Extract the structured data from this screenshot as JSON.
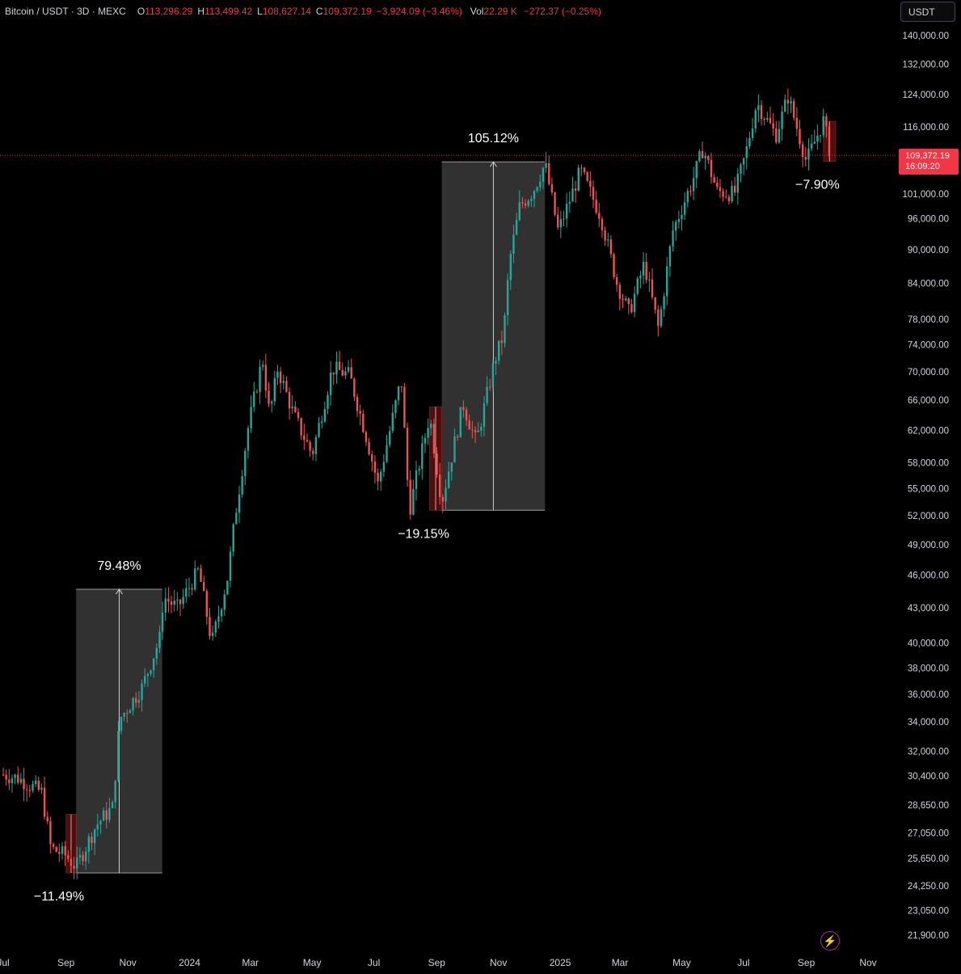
{
  "legend": {
    "symbol": "Bitcoin / USDT · 3D · MEXC",
    "open_label": "O",
    "open": "113,296.29",
    "high_label": "H",
    "high": "113,499.42",
    "low_label": "L",
    "low": "108,627.14",
    "close_label": "C",
    "close": "109,372.19",
    "change": "−3,924.09 (−3.46%)",
    "vol_label": "Vol",
    "vol": "22.29 K",
    "vol_change": "−272.37 (−0.25%)"
  },
  "currency_button": "USDT",
  "price_tag": {
    "price": "109,372.19",
    "countdown": "16:09:20"
  },
  "colors": {
    "background": "#000000",
    "up": "#26a69a",
    "down": "#ef5350",
    "axis_text": "#d1d4dc",
    "measure_fill": "#3a3a3a",
    "measure_red": "#8b1a1a"
  },
  "icons": {
    "bottom_right": "lightning-icon"
  },
  "chart_data": {
    "type": "candlestick",
    "title": "Bitcoin / USDT · 3D · MEXC",
    "y_scale": "log",
    "ylim": [
      21000,
      146000
    ],
    "y_ticks": [
      140000,
      132000,
      124000,
      116000,
      101000,
      96000,
      90000,
      84000,
      78000,
      74000,
      70000,
      66000,
      62000,
      58000,
      55000,
      52000,
      49000,
      46000,
      43000,
      40000,
      38000,
      36000,
      34000,
      32000,
      30400,
      28650,
      27050,
      25650,
      24250,
      23050,
      21900
    ],
    "y_tick_labels": [
      "140,000.00",
      "132,000.00",
      "124,000.00",
      "116,000.00",
      "101,000.00",
      "96,000.00",
      "90,000.00",
      "84,000.00",
      "78,000.00",
      "74,000.00",
      "70,000.00",
      "66,000.00",
      "62,000.00",
      "58,000.00",
      "55,000.00",
      "52,000.00",
      "49,000.00",
      "46,000.00",
      "43,000.00",
      "40,000.00",
      "38,000.00",
      "36,000.00",
      "34,000.00",
      "32,000.00",
      "30,400.00",
      "28,650.00",
      "27,050.00",
      "25,650.00",
      "24,250.00",
      "23,050.00",
      "21,900.00"
    ],
    "x_ticks": [
      "2023-07",
      "2023-09",
      "2023-11",
      "2024-01",
      "2024-03",
      "2024-05",
      "2024-07",
      "2024-09",
      "2024-11",
      "2025-01",
      "2025-03",
      "2025-05",
      "2025-07",
      "2025-09",
      "2025-11"
    ],
    "x_tick_labels": [
      "Jul",
      "Sep",
      "Nov",
      "2024",
      "Mar",
      "May",
      "Jul",
      "Sep",
      "Nov",
      "2025",
      "Mar",
      "May",
      "Jul",
      "Sep",
      "Nov"
    ],
    "last_price": 109372.19,
    "price_anchors": [
      {
        "date": "2023-07-01",
        "price": 30500
      },
      {
        "date": "2023-07-15",
        "price": 30300
      },
      {
        "date": "2023-08-08",
        "price": 29400
      },
      {
        "date": "2023-08-17",
        "price": 26200
      },
      {
        "date": "2023-09-01",
        "price": 25800
      },
      {
        "date": "2023-09-11",
        "price": 25200
      },
      {
        "date": "2023-10-01",
        "price": 27500
      },
      {
        "date": "2023-10-17",
        "price": 28500
      },
      {
        "date": "2023-10-24",
        "price": 34200
      },
      {
        "date": "2023-11-15",
        "price": 36500
      },
      {
        "date": "2023-12-03",
        "price": 40500
      },
      {
        "date": "2023-12-06",
        "price": 44000
      },
      {
        "date": "2023-12-20",
        "price": 43000
      },
      {
        "date": "2024-01-10",
        "price": 46500
      },
      {
        "date": "2024-01-23",
        "price": 40000
      },
      {
        "date": "2024-02-08",
        "price": 46000
      },
      {
        "date": "2024-02-15",
        "price": 52000
      },
      {
        "date": "2024-02-28",
        "price": 62500
      },
      {
        "date": "2024-03-13",
        "price": 72000
      },
      {
        "date": "2024-03-20",
        "price": 64000
      },
      {
        "date": "2024-03-28",
        "price": 70500
      },
      {
        "date": "2024-04-13",
        "price": 64000
      },
      {
        "date": "2024-05-01",
        "price": 59000
      },
      {
        "date": "2024-05-21",
        "price": 70500
      },
      {
        "date": "2024-06-07",
        "price": 69500
      },
      {
        "date": "2024-06-24",
        "price": 61000
      },
      {
        "date": "2024-07-05",
        "price": 55500
      },
      {
        "date": "2024-07-28",
        "price": 69000
      },
      {
        "date": "2024-08-05",
        "price": 52500
      },
      {
        "date": "2024-08-25",
        "price": 64000
      },
      {
        "date": "2024-09-06",
        "price": 53500
      },
      {
        "date": "2024-09-27",
        "price": 65500
      },
      {
        "date": "2024-10-10",
        "price": 60500
      },
      {
        "date": "2024-10-29",
        "price": 72000
      },
      {
        "date": "2024-11-06",
        "price": 75500
      },
      {
        "date": "2024-11-12",
        "price": 88000
      },
      {
        "date": "2024-11-22",
        "price": 98500
      },
      {
        "date": "2024-12-05",
        "price": 101500
      },
      {
        "date": "2024-12-17",
        "price": 107500
      },
      {
        "date": "2024-12-30",
        "price": 93500
      },
      {
        "date": "2025-01-21",
        "price": 106000
      },
      {
        "date": "2025-02-10",
        "price": 96500
      },
      {
        "date": "2025-02-26",
        "price": 84000
      },
      {
        "date": "2025-03-10",
        "price": 79000
      },
      {
        "date": "2025-03-25",
        "price": 87500
      },
      {
        "date": "2025-04-08",
        "price": 76500
      },
      {
        "date": "2025-04-22",
        "price": 93500
      },
      {
        "date": "2025-05-12",
        "price": 104000
      },
      {
        "date": "2025-05-22",
        "price": 111000
      },
      {
        "date": "2025-06-05",
        "price": 101500
      },
      {
        "date": "2025-06-22",
        "price": 101000
      },
      {
        "date": "2025-07-03",
        "price": 109500
      },
      {
        "date": "2025-07-14",
        "price": 122000
      },
      {
        "date": "2025-08-02",
        "price": 114000
      },
      {
        "date": "2025-08-14",
        "price": 123500
      },
      {
        "date": "2025-09-01",
        "price": 108000
      },
      {
        "date": "2025-09-18",
        "price": 117500
      },
      {
        "date": "2025-09-25",
        "price": 109372
      }
    ],
    "measurements": [
      {
        "label": "79.48%",
        "direction": "up",
        "start_date": "2023-09-11",
        "end_date": "2023-12-05",
        "low": 24900,
        "high": 44700
      },
      {
        "label": "−11.49%",
        "direction": "down",
        "start_date": "2023-09-01",
        "end_date": "2023-09-11",
        "low": 24900,
        "high": 28100
      },
      {
        "label": "105.12%",
        "direction": "up",
        "start_date": "2024-09-06",
        "end_date": "2024-12-17",
        "low": 52600,
        "high": 107900
      },
      {
        "label": "−19.15%",
        "direction": "down",
        "start_date": "2024-08-25",
        "end_date": "2024-09-06",
        "low": 52600,
        "high": 65100
      },
      {
        "label": "−7.90%",
        "direction": "down",
        "start_date": "2025-09-18",
        "end_date": "2025-09-30",
        "low": 108000,
        "high": 117300
      }
    ]
  }
}
